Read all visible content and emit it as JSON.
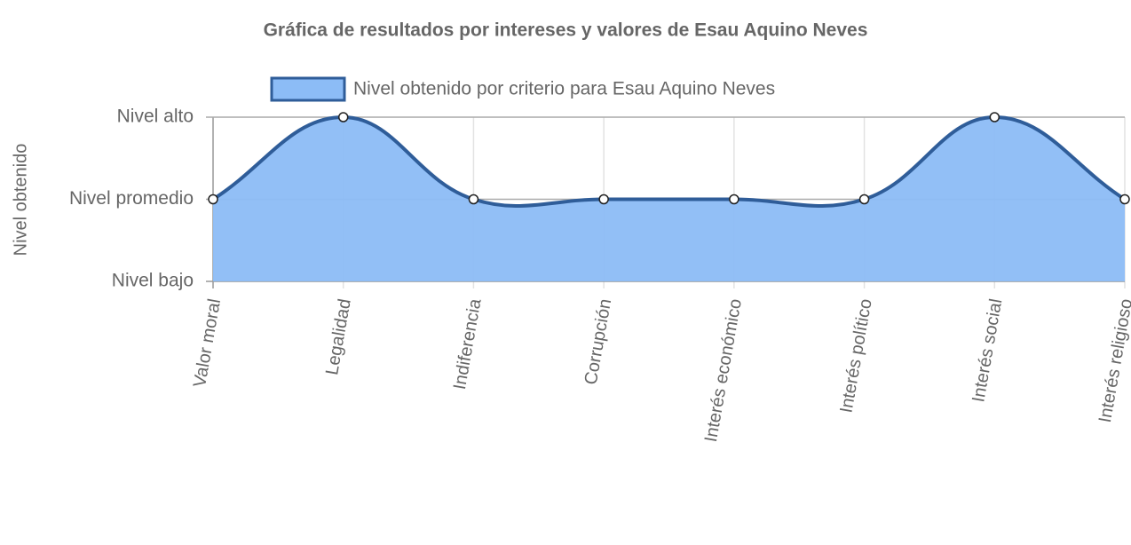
{
  "chart_data": {
    "type": "line",
    "title": "Gráfica de resultados por intereses y valores de Esau Aquino Neves",
    "y_label": "Nivel obtenido",
    "categories": [
      "Valor moral",
      "Legalidad",
      "Indiferencia",
      "Corrupción",
      "Interés económico",
      "Interés político",
      "Interés social",
      "Interés religioso"
    ],
    "series": [
      {
        "name": "Nivel obtenido por criterio para Esau Aquino Neves",
        "color": "#2f5d99",
        "fill": "#8cbcf6",
        "values": [
          2,
          3,
          2,
          2,
          2,
          2,
          3,
          2
        ]
      }
    ],
    "ylim": [
      1,
      3
    ],
    "yticks": [
      {
        "value": 1,
        "label": "Nivel bajo"
      },
      {
        "value": 2,
        "label": "Nivel promedio"
      },
      {
        "value": 3,
        "label": "Nivel alto"
      }
    ],
    "grid": true
  }
}
